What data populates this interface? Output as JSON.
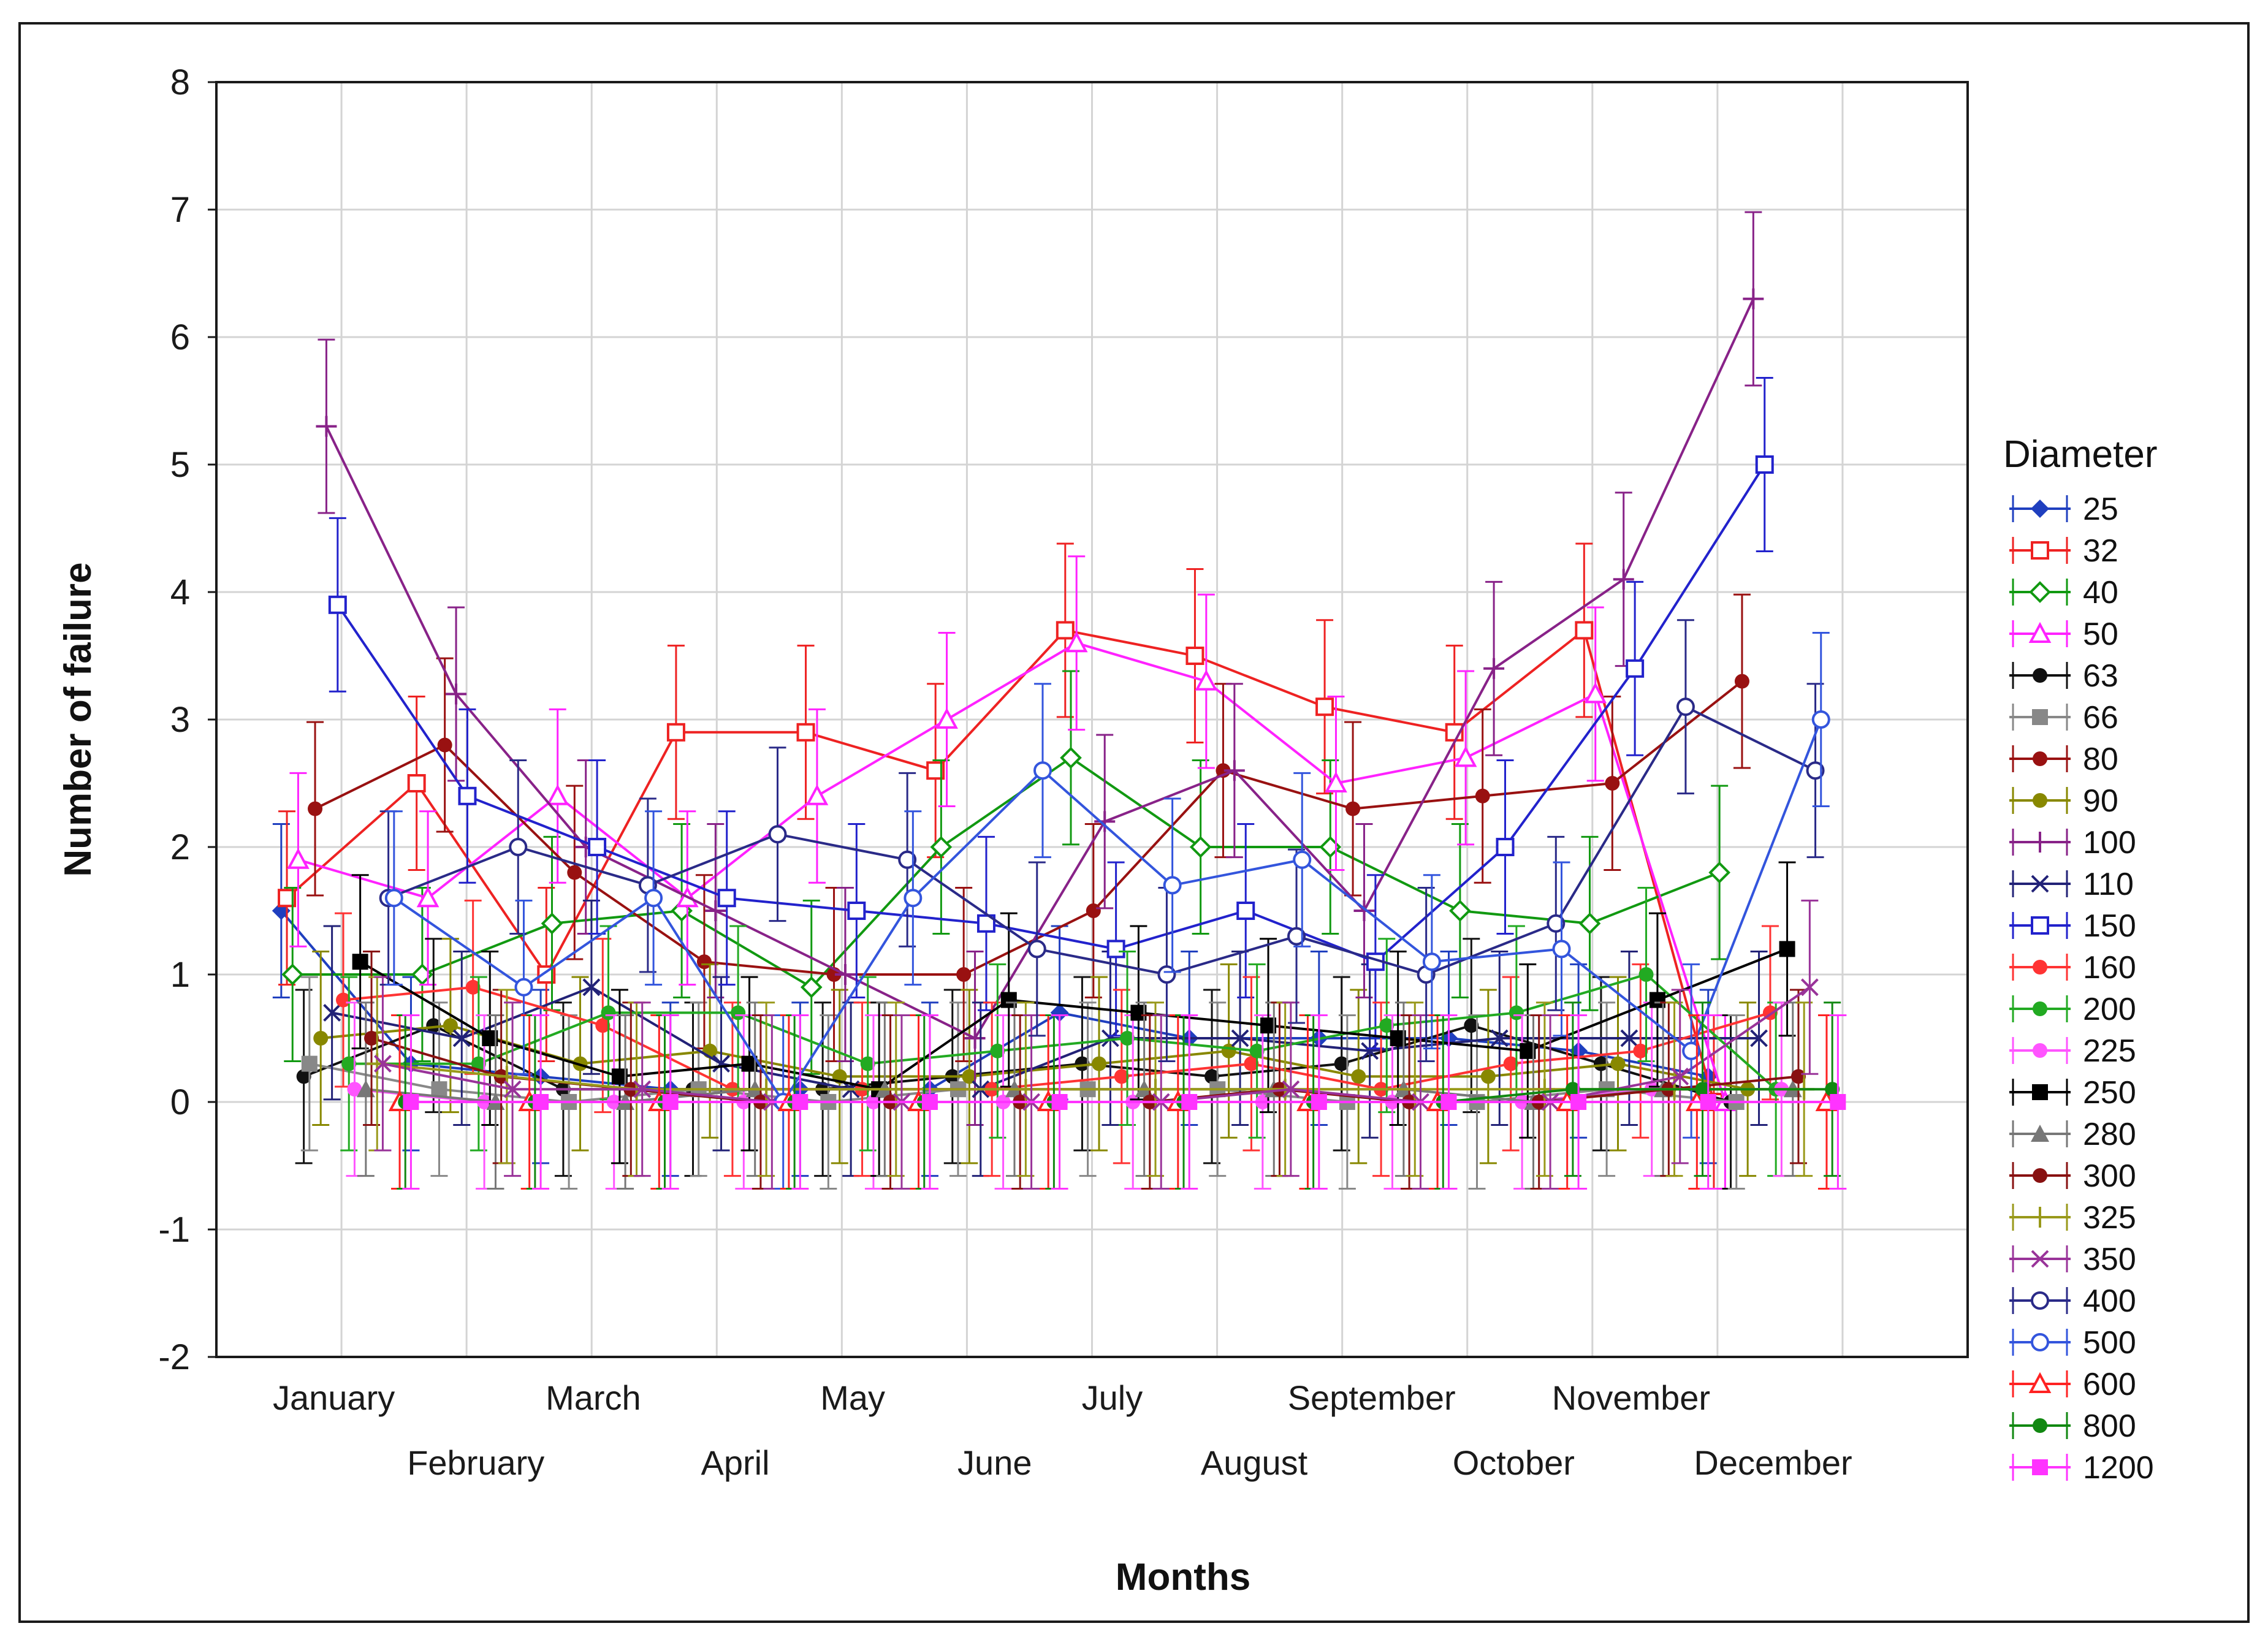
{
  "chart_data": {
    "type": "line",
    "title": "",
    "xlabel": "Months",
    "ylabel": "Number of failure",
    "ylim": [
      -2,
      8
    ],
    "yticks": [
      "8",
      "7",
      "6",
      "5",
      "4",
      "3",
      "2",
      "1",
      "0",
      "-1",
      "-2"
    ],
    "categories": [
      "January",
      "February",
      "March",
      "April",
      "May",
      "June",
      "July",
      "August",
      "September",
      "October",
      "November",
      "December"
    ],
    "error_bar": 0.68,
    "legend_title": "Diameter",
    "legend_position": "right",
    "grid": true,
    "series": [
      {
        "name": "25",
        "color": "#1f3fbf",
        "marker": "diamond",
        "values": [
          1.5,
          0.3,
          0.2,
          0.1,
          0.1,
          0.1,
          0.7,
          0.5,
          0.5,
          0.5,
          0.4,
          0.2
        ]
      },
      {
        "name": "32",
        "color": "#ee2222",
        "marker": "square-open",
        "values": [
          1.6,
          2.5,
          1.0,
          2.9,
          2.9,
          2.6,
          3.7,
          3.5,
          3.1,
          2.9,
          3.7,
          0.0
        ]
      },
      {
        "name": "40",
        "color": "#119911",
        "marker": "diamond-open",
        "values": [
          1.0,
          1.0,
          1.4,
          1.5,
          0.9,
          2.0,
          2.7,
          2.0,
          2.0,
          1.5,
          1.4,
          1.8
        ]
      },
      {
        "name": "50",
        "color": "#ff22ff",
        "marker": "triangle-open",
        "values": [
          1.9,
          1.6,
          2.4,
          1.6,
          2.4,
          3.0,
          3.6,
          3.3,
          2.5,
          2.7,
          3.2,
          0.0
        ]
      },
      {
        "name": "63",
        "color": "#111111",
        "marker": "circle",
        "values": [
          0.2,
          0.6,
          0.1,
          0.1,
          0.1,
          0.2,
          0.3,
          0.2,
          0.3,
          0.6,
          0.3,
          0.0
        ]
      },
      {
        "name": "66",
        "color": "#888888",
        "marker": "square",
        "values": [
          0.3,
          0.1,
          0.0,
          0.1,
          0.0,
          0.1,
          0.1,
          0.1,
          0.0,
          0.0,
          0.1,
          0.0
        ]
      },
      {
        "name": "80",
        "color": "#991111",
        "marker": "circle",
        "values": [
          2.3,
          2.8,
          1.8,
          1.1,
          1.0,
          1.0,
          1.5,
          2.6,
          2.3,
          2.4,
          2.5,
          3.3
        ]
      },
      {
        "name": "90",
        "color": "#888800",
        "marker": "circle",
        "values": [
          0.5,
          0.6,
          0.3,
          0.4,
          0.2,
          0.2,
          0.3,
          0.4,
          0.2,
          0.2,
          0.3,
          0.1
        ]
      },
      {
        "name": "100",
        "color": "#882288",
        "marker": "plus",
        "values": [
          5.3,
          3.2,
          2.0,
          1.5,
          1.0,
          0.5,
          2.2,
          2.6,
          1.5,
          3.4,
          4.1,
          6.3
        ]
      },
      {
        "name": "110",
        "color": "#222277",
        "marker": "cross",
        "values": [
          0.7,
          0.5,
          0.9,
          0.3,
          0.1,
          0.1,
          0.5,
          0.5,
          0.4,
          0.5,
          0.5,
          0.5
        ]
      },
      {
        "name": "150",
        "color": "#2222cc",
        "marker": "square-open",
        "values": [
          3.9,
          2.4,
          2.0,
          1.6,
          1.5,
          1.4,
          1.2,
          1.5,
          1.1,
          2.0,
          3.4,
          5.0
        ]
      },
      {
        "name": "160",
        "color": "#ff3333",
        "marker": "circle",
        "values": [
          0.8,
          0.9,
          0.6,
          0.1,
          0.1,
          0.1,
          0.2,
          0.3,
          0.1,
          0.3,
          0.4,
          0.7
        ]
      },
      {
        "name": "200",
        "color": "#22aa22",
        "marker": "circle",
        "values": [
          0.3,
          0.3,
          0.7,
          0.7,
          0.3,
          0.4,
          0.5,
          0.4,
          0.6,
          0.7,
          1.0,
          0.1
        ]
      },
      {
        "name": "225",
        "color": "#ff55ff",
        "marker": "circle",
        "values": [
          0.1,
          0.0,
          0.0,
          0.0,
          0.0,
          0.0,
          0.0,
          0.0,
          0.0,
          0.0,
          0.1,
          0.1
        ]
      },
      {
        "name": "250",
        "color": "#000000",
        "marker": "square",
        "values": [
          1.1,
          0.5,
          0.2,
          0.3,
          0.1,
          0.8,
          0.7,
          0.6,
          0.5,
          0.4,
          0.8,
          1.2
        ]
      },
      {
        "name": "280",
        "color": "#777777",
        "marker": "triangle",
        "values": [
          0.1,
          0.0,
          0.0,
          0.1,
          0.1,
          0.1,
          0.1,
          0.1,
          0.1,
          0.0,
          0.1,
          0.1
        ]
      },
      {
        "name": "300",
        "color": "#881111",
        "marker": "circle",
        "values": [
          0.5,
          0.2,
          0.1,
          0.0,
          0.0,
          0.0,
          0.0,
          0.1,
          0.0,
          0.0,
          0.1,
          0.2
        ]
      },
      {
        "name": "325",
        "color": "#99991a",
        "marker": "plus",
        "values": [
          0.3,
          0.2,
          0.1,
          0.1,
          0.1,
          0.1,
          0.1,
          0.1,
          0.1,
          0.1,
          0.1,
          0.1
        ]
      },
      {
        "name": "350",
        "color": "#993399",
        "marker": "cross",
        "values": [
          0.3,
          0.1,
          0.1,
          0.0,
          0.0,
          0.0,
          0.0,
          0.1,
          0.0,
          0.0,
          0.2,
          0.9
        ]
      },
      {
        "name": "400",
        "color": "#2a2a88",
        "marker": "circle-open",
        "values": [
          1.6,
          2.0,
          1.7,
          2.1,
          1.9,
          1.2,
          1.0,
          1.3,
          1.0,
          1.4,
          3.1,
          2.6
        ]
      },
      {
        "name": "500",
        "color": "#3355dd",
        "marker": "circle-open",
        "values": [
          1.6,
          0.9,
          1.6,
          0.0,
          1.6,
          2.6,
          1.7,
          1.9,
          1.1,
          1.2,
          0.4,
          3.0
        ]
      },
      {
        "name": "600",
        "color": "#ff2222",
        "marker": "triangle-open",
        "values": [
          0.0,
          0.0,
          0.0,
          0.0,
          0.0,
          0.0,
          0.0,
          0.0,
          0.0,
          0.0,
          0.0,
          0.0
        ]
      },
      {
        "name": "800",
        "color": "#118811",
        "marker": "circle",
        "values": [
          0.0,
          0.0,
          0.0,
          0.0,
          0.0,
          0.0,
          0.0,
          0.0,
          0.0,
          0.1,
          0.1,
          0.1
        ]
      },
      {
        "name": "1200",
        "color": "#ff33ff",
        "marker": "square",
        "values": [
          0.0,
          0.0,
          0.0,
          0.0,
          0.0,
          0.0,
          0.0,
          0.0,
          0.0,
          0.0,
          0.0,
          0.0
        ]
      }
    ]
  }
}
